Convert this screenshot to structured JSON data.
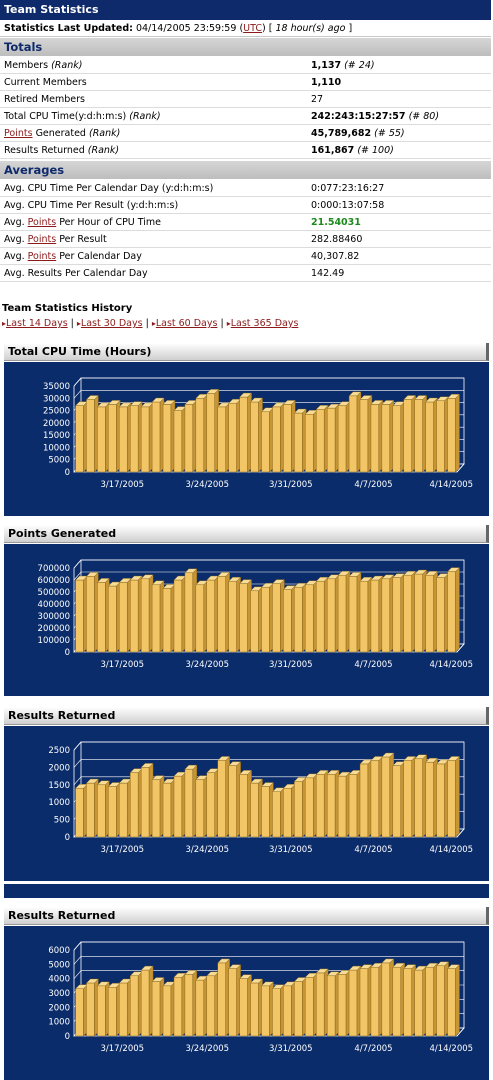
{
  "header": {
    "title": "Team Statistics"
  },
  "updated": {
    "label": "Statistics Last Updated:",
    "datetime": "04/14/2005 23:59:59",
    "tz_open": "(",
    "tz": "UTC",
    "tz_close": ")",
    "ago_prefix": "[",
    "ago": "18 hour(s) ago",
    "ago_suffix": "]"
  },
  "totals": {
    "title": "Totals",
    "members_label": "Members",
    "members_rank_label": "(Rank)",
    "members_value": "1,137",
    "members_rank": "(# 24)",
    "current_label": "Current Members",
    "current_value": "1,110",
    "retired_label": "Retired Members",
    "retired_value": "27",
    "cpu_label": "Total CPU Time(y:d:h:m:s)",
    "cpu_rank_label": "(Rank)",
    "cpu_value": "242:243:15:27:57",
    "cpu_rank": "(# 80)",
    "points_link": "Points",
    "points_label": " Generated ",
    "points_rank_label": "(Rank)",
    "points_value": "45,789,682",
    "points_rank": "(# 55)",
    "results_label": "Results Returned",
    "results_rank_label": "(Rank)",
    "results_value": "161,867",
    "results_rank": "(# 100)"
  },
  "averages": {
    "title": "Averages",
    "cpu_day_label": "Avg. CPU Time Per Calendar Day (y:d:h:m:s)",
    "cpu_day_value": "0:077:23:16:27",
    "cpu_result_label": "Avg. CPU Time Per Result (y:d:h:m:s)",
    "cpu_result_value": "0:000:13:07:58",
    "pph_prefix": "Avg. ",
    "pph_link": "Points",
    "pph_suffix": " Per Hour of CPU Time",
    "pph_value": "21.54031",
    "ppr_prefix": "Avg. ",
    "ppr_link": "Points",
    "ppr_suffix": " Per Result",
    "ppr_value": "282.88460",
    "ppd_prefix": "Avg. ",
    "ppd_link": "Points",
    "ppd_suffix": " Per Calendar Day",
    "ppd_value": "40,307.82",
    "rpd_label": "Avg. Results Per Calendar Day",
    "rpd_value": "142.49"
  },
  "history": {
    "title": "Team Statistics History",
    "links": [
      "Last 14 Days",
      "Last 30 Days",
      "Last 60 Days",
      "Last 365 Days"
    ],
    "separator": "|",
    "arrow_icon": "right-triangle-icon"
  },
  "chart_data": [
    {
      "type": "bar",
      "title": "Total CPU Time (Hours)",
      "ylim": [
        0,
        35000
      ],
      "yticks": [
        "0",
        "5000",
        "10000",
        "15000",
        "20000",
        "25000",
        "30000",
        "35000"
      ],
      "xticks": [
        "3/17/2005",
        "3/24/2005",
        "3/31/2005",
        "4/7/2005",
        "4/14/2005"
      ],
      "values": [
        27000,
        29500,
        26500,
        27500,
        26500,
        27000,
        26500,
        28500,
        27500,
        25000,
        27500,
        30000,
        32000,
        26500,
        28000,
        30500,
        28500,
        24500,
        26500,
        27500,
        24000,
        23500,
        25500,
        26000,
        27000,
        31000,
        29500,
        27500,
        27500,
        27000,
        29500,
        29500,
        28500,
        29000,
        30000
      ]
    },
    {
      "type": "bar",
      "title": "Points Generated",
      "ylim": [
        0,
        700000
      ],
      "yticks": [
        "0",
        "100000",
        "200000",
        "300000",
        "400000",
        "500000",
        "600000",
        "700000"
      ],
      "xticks": [
        "3/17/2005",
        "3/24/2005",
        "3/31/2005",
        "4/7/2005",
        "4/14/2005"
      ],
      "values": [
        600000,
        630000,
        580000,
        550000,
        580000,
        600000,
        610000,
        560000,
        530000,
        600000,
        660000,
        560000,
        600000,
        630000,
        590000,
        570000,
        510000,
        540000,
        570000,
        520000,
        540000,
        560000,
        590000,
        610000,
        640000,
        630000,
        590000,
        600000,
        610000,
        620000,
        640000,
        650000,
        640000,
        620000,
        670000
      ]
    },
    {
      "type": "bar",
      "title": "Results Returned",
      "ylim": [
        0,
        2500
      ],
      "yticks": [
        "0",
        "500",
        "1000",
        "1500",
        "2000",
        "2500"
      ],
      "xticks": [
        "3/17/2005",
        "3/24/2005",
        "3/31/2005",
        "4/7/2005",
        "4/14/2005"
      ],
      "values": [
        1400,
        1550,
        1500,
        1450,
        1550,
        1850,
        2000,
        1650,
        1550,
        1750,
        1950,
        1650,
        1850,
        2200,
        2050,
        1800,
        1550,
        1450,
        1300,
        1400,
        1600,
        1700,
        1800,
        1800,
        1750,
        1800,
        2100,
        2200,
        2300,
        2050,
        2200,
        2250,
        2150,
        2100,
        2200
      ]
    },
    {
      "type": "bar",
      "title": "Results Returned",
      "ylim": [
        0,
        6000
      ],
      "yticks": [
        "0",
        "1000",
        "2000",
        "3000",
        "4000",
        "5000",
        "6000"
      ],
      "xticks": [
        "3/17/2005",
        "3/24/2005",
        "3/31/2005",
        "4/7/2005",
        "4/14/2005"
      ],
      "values": [
        3300,
        3700,
        3500,
        3400,
        3700,
        4200,
        4600,
        3800,
        3500,
        4100,
        4300,
        3900,
        4200,
        5100,
        4700,
        4000,
        3700,
        3500,
        3300,
        3500,
        3800,
        4100,
        4400,
        4200,
        4300,
        4600,
        4700,
        4800,
        5100,
        4800,
        4700,
        4600,
        4800,
        4900,
        4700
      ]
    }
  ],
  "colors": {
    "title_bg": "#0e2a6b",
    "panel_bg": "#0b2c6a",
    "bar": "#f2c566",
    "bar_side": "#c79534",
    "link": "#8b1a1a",
    "highlight": "#1c8a1c"
  }
}
